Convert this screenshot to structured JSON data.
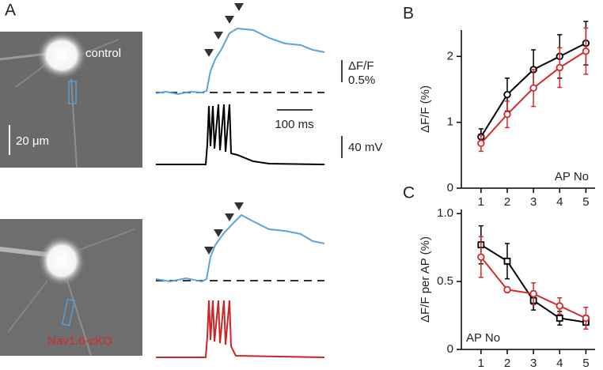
{
  "panel_a": {
    "label": "A",
    "top_image_label": "control",
    "bottom_image_label": "Nav1.6-cKO",
    "image_scale": "20 μm",
    "dff_scale_name": "ΔF/F",
    "dff_scale": "0.5%",
    "time_scale": "100 ms",
    "voltage_scale": "40 mV"
  },
  "chart_data": [
    {
      "type": "line",
      "panel_label": "B",
      "ylabel": "ΔF/F (%)",
      "annotation": "AP No",
      "x": [
        1,
        2,
        3,
        4,
        5
      ],
      "xlim": [
        0.25,
        5.35
      ],
      "xticks": [
        1,
        2,
        3,
        4,
        5
      ],
      "ylim": [
        0,
        2.4
      ],
      "yticks": [
        0,
        1,
        2
      ],
      "series": [
        {
          "color": "#000000",
          "marker": "circle",
          "values": [
            0.78,
            1.42,
            1.8,
            2.0,
            2.2
          ],
          "errors": [
            0.12,
            0.25,
            0.3,
            0.33,
            0.33
          ]
        },
        {
          "color": "#d42a2a",
          "marker": "circle",
          "values": [
            0.68,
            1.12,
            1.52,
            1.83,
            2.08
          ],
          "errors": [
            0.12,
            0.2,
            0.28,
            0.3,
            0.35
          ]
        }
      ]
    },
    {
      "type": "line",
      "panel_label": "C",
      "ylabel": "ΔF/F per AP (%)",
      "annotation": "AP No",
      "x": [
        1,
        2,
        3,
        4,
        5
      ],
      "xlim": [
        0.25,
        5.35
      ],
      "xticks": [
        1,
        2,
        3,
        4,
        5
      ],
      "ylim": [
        0,
        1.03
      ],
      "yticks": [
        0,
        0.5,
        {
          "value": 1,
          "label": "1.0"
        }
      ],
      "series": [
        {
          "color": "#000000",
          "marker": "square",
          "values": [
            0.77,
            0.65,
            0.36,
            0.23,
            0.2
          ],
          "errors": [
            0.14,
            0.13,
            0.07,
            0.05,
            0.05
          ]
        },
        {
          "color": "#d42a2a",
          "marker": "circle",
          "values": [
            0.68,
            0.44,
            0.41,
            0.32,
            0.23
          ],
          "errors": [
            0.15,
            0.02,
            0.08,
            0.06,
            0.08
          ]
        }
      ]
    }
  ]
}
